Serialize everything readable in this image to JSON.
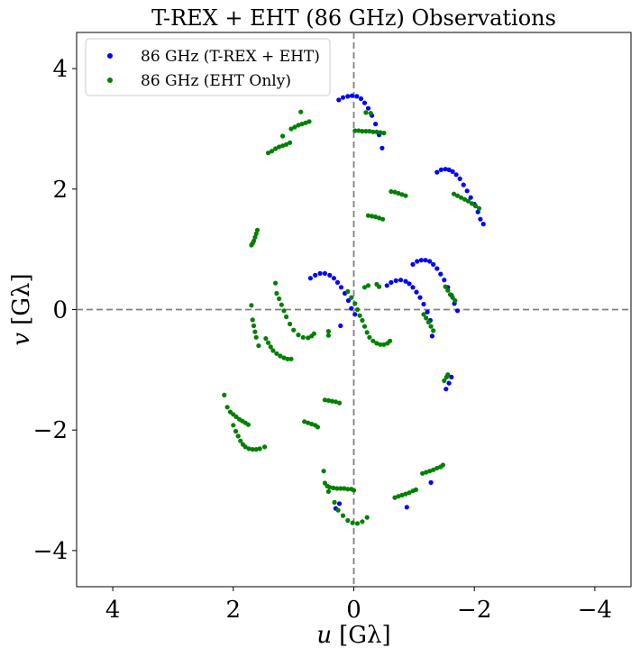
{
  "chart_data": {
    "type": "scatter",
    "title": "T-REX + EHT (86 GHz) Observations",
    "xlabel_var": "u",
    "xlabel_unit": "[Gλ]",
    "ylabel_var": "v",
    "ylabel_unit": "[Gλ]",
    "xlim": [
      4.6,
      -4.6
    ],
    "ylim": [
      -4.6,
      4.6
    ],
    "xticks": [
      4,
      2,
      0,
      -2,
      -4
    ],
    "xtick_labels": [
      "4",
      "2",
      "0",
      "−2",
      "−4"
    ],
    "yticks": [
      4,
      2,
      0,
      -2,
      -4
    ],
    "ytick_labels": [
      "4",
      "2",
      "0",
      "−2",
      "−4"
    ],
    "zero_lines": true,
    "grid": false,
    "legend_position": "top-left",
    "series": [
      {
        "name": "86 GHz (T-REX + EHT)",
        "color": "#0000ff",
        "points": [
          [
            0.25,
            3.48
          ],
          [
            0.18,
            3.52
          ],
          [
            0.1,
            3.54
          ],
          [
            0.03,
            3.55
          ],
          [
            -0.05,
            3.54
          ],
          [
            -0.12,
            3.5
          ],
          [
            -0.18,
            3.43
          ],
          [
            -0.24,
            3.34
          ],
          [
            -0.3,
            3.22
          ],
          [
            -0.36,
            3.08
          ],
          [
            -0.42,
            2.9
          ],
          [
            -0.47,
            2.68
          ],
          [
            -1.38,
            2.28
          ],
          [
            -1.45,
            2.32
          ],
          [
            -1.52,
            2.33
          ],
          [
            -1.58,
            2.32
          ],
          [
            -1.64,
            2.29
          ],
          [
            -1.7,
            2.24
          ],
          [
            -1.76,
            2.17
          ],
          [
            -1.82,
            2.07
          ],
          [
            -1.88,
            1.97
          ],
          [
            -1.94,
            1.86
          ],
          [
            -2.0,
            1.75
          ],
          [
            -2.06,
            1.62
          ],
          [
            -2.1,
            1.5
          ],
          [
            -2.15,
            1.42
          ],
          [
            0.72,
            0.52
          ],
          [
            0.64,
            0.57
          ],
          [
            0.56,
            0.6
          ],
          [
            0.48,
            0.6
          ],
          [
            0.4,
            0.57
          ],
          [
            0.33,
            0.52
          ],
          [
            0.27,
            0.45
          ],
          [
            0.21,
            0.37
          ],
          [
            0.15,
            0.27
          ],
          [
            0.09,
            0.15
          ],
          [
            0.04,
            0.02
          ],
          [
            -0.02,
            -0.08
          ],
          [
            0.22,
            -0.27
          ],
          [
            -0.55,
            0.4
          ],
          [
            -0.62,
            0.45
          ],
          [
            -0.7,
            0.48
          ],
          [
            -0.78,
            0.49
          ],
          [
            -0.86,
            0.47
          ],
          [
            -0.92,
            0.43
          ],
          [
            -0.98,
            0.37
          ],
          [
            -1.04,
            0.29
          ],
          [
            -1.1,
            0.2
          ],
          [
            -1.16,
            0.09
          ],
          [
            -1.22,
            -0.04
          ],
          [
            -1.27,
            -0.18
          ],
          [
            -1.3,
            -0.44
          ],
          [
            -0.98,
            0.75
          ],
          [
            -1.05,
            0.8
          ],
          [
            -1.12,
            0.82
          ],
          [
            -1.19,
            0.82
          ],
          [
            -1.26,
            0.8
          ],
          [
            -1.32,
            0.75
          ],
          [
            -1.38,
            0.68
          ],
          [
            -1.44,
            0.59
          ],
          [
            -1.5,
            0.49
          ],
          [
            -1.56,
            0.37
          ],
          [
            -1.62,
            0.24
          ],
          [
            -1.67,
            0.1
          ],
          [
            -1.72,
            -0.02
          ],
          [
            -1.53,
            -1.32
          ],
          [
            -1.58,
            -1.22
          ],
          [
            -1.62,
            -1.12
          ],
          [
            0.24,
            -3.22
          ],
          [
            0.3,
            -3.3
          ],
          [
            -0.88,
            -3.28
          ],
          [
            -1.28,
            -2.87
          ]
        ]
      },
      {
        "name": "86 GHz (EHT Only)",
        "color": "#008000",
        "points": [
          [
            0.88,
            3.28
          ],
          [
            1.18,
            2.88
          ],
          [
            0.74,
            3.12
          ],
          [
            0.8,
            3.1
          ],
          [
            0.86,
            3.08
          ],
          [
            0.92,
            3.06
          ],
          [
            0.98,
            3.03
          ],
          [
            1.04,
            3.0
          ],
          [
            1.06,
            2.77
          ],
          [
            1.12,
            2.74
          ],
          [
            1.18,
            2.72
          ],
          [
            1.24,
            2.7
          ],
          [
            1.3,
            2.67
          ],
          [
            1.36,
            2.63
          ],
          [
            1.42,
            2.6
          ],
          [
            -0.02,
            2.97
          ],
          [
            -0.08,
            2.97
          ],
          [
            -0.14,
            2.96
          ],
          [
            -0.2,
            2.96
          ],
          [
            -0.26,
            2.96
          ],
          [
            -0.32,
            2.95
          ],
          [
            -0.38,
            2.95
          ],
          [
            -0.44,
            2.94
          ],
          [
            -0.5,
            2.93
          ],
          [
            -0.2,
            3.27
          ],
          [
            -0.28,
            3.26
          ],
          [
            -0.62,
            1.96
          ],
          [
            -0.68,
            1.95
          ],
          [
            -0.74,
            1.93
          ],
          [
            -0.8,
            1.91
          ],
          [
            -0.86,
            1.89
          ],
          [
            -1.66,
            1.92
          ],
          [
            -1.72,
            1.89
          ],
          [
            -1.78,
            1.86
          ],
          [
            -1.84,
            1.83
          ],
          [
            -1.9,
            1.8
          ],
          [
            -1.96,
            1.76
          ],
          [
            -2.02,
            1.72
          ],
          [
            -2.08,
            1.68
          ],
          [
            -0.24,
            1.56
          ],
          [
            -0.3,
            1.55
          ],
          [
            -0.36,
            1.54
          ],
          [
            -0.42,
            1.52
          ],
          [
            -0.48,
            1.5
          ],
          [
            1.6,
            1.32
          ],
          [
            1.62,
            1.26
          ],
          [
            1.64,
            1.2
          ],
          [
            1.66,
            1.14
          ],
          [
            1.68,
            1.1
          ],
          [
            1.7,
            1.07
          ],
          [
            -0.18,
            0.37
          ],
          [
            -0.24,
            0.4
          ],
          [
            -0.38,
            0.42
          ],
          [
            -0.42,
            0.38
          ],
          [
            1.3,
            0.44
          ],
          [
            1.7,
            0.07
          ],
          [
            -1.52,
            0.38
          ],
          [
            -1.56,
            0.32
          ],
          [
            -1.6,
            0.25
          ],
          [
            -1.64,
            0.2
          ],
          [
            -1.68,
            0.15
          ],
          [
            -1.16,
            -0.08
          ],
          [
            -1.2,
            -0.14
          ],
          [
            -1.24,
            -0.21
          ],
          [
            -1.28,
            -0.28
          ],
          [
            -1.32,
            -0.35
          ],
          [
            1.28,
            0.27
          ],
          [
            1.24,
            0.18
          ],
          [
            1.2,
            0.08
          ],
          [
            1.16,
            -0.02
          ],
          [
            1.12,
            -0.12
          ],
          [
            1.06,
            -0.24
          ],
          [
            1.0,
            -0.34
          ],
          [
            0.92,
            -0.42
          ],
          [
            0.84,
            -0.46
          ],
          [
            0.76,
            -0.47
          ],
          [
            0.7,
            -0.44
          ],
          [
            0.66,
            -0.4
          ],
          [
            1.68,
            -0.17
          ],
          [
            1.66,
            -0.27
          ],
          [
            1.64,
            -0.37
          ],
          [
            1.62,
            -0.46
          ],
          [
            1.58,
            -0.6
          ],
          [
            1.46,
            -0.48
          ],
          [
            1.42,
            -0.55
          ],
          [
            1.38,
            -0.62
          ],
          [
            1.34,
            -0.68
          ],
          [
            1.28,
            -0.73
          ],
          [
            1.22,
            -0.77
          ],
          [
            1.16,
            -0.8
          ],
          [
            1.1,
            -0.82
          ],
          [
            1.04,
            -0.82
          ],
          [
            0.1,
            0.3
          ],
          [
            0.04,
            0.2
          ],
          [
            -0.02,
            0.1
          ],
          [
            -0.06,
            0.0
          ],
          [
            -0.1,
            -0.1
          ],
          [
            -0.14,
            -0.18
          ],
          [
            -0.18,
            -0.28
          ],
          [
            -0.22,
            -0.38
          ],
          [
            -0.26,
            -0.46
          ],
          [
            -0.32,
            -0.52
          ],
          [
            -0.38,
            -0.56
          ],
          [
            -0.44,
            -0.58
          ],
          [
            -0.5,
            -0.58
          ],
          [
            -0.56,
            -0.56
          ],
          [
            -0.6,
            -0.52
          ],
          [
            0.42,
            -0.36
          ],
          [
            0.42,
            -0.43
          ],
          [
            -1.5,
            -1.18
          ],
          [
            -1.54,
            -1.12
          ],
          [
            -1.56,
            -1.08
          ],
          [
            0.48,
            -1.5
          ],
          [
            0.42,
            -1.51
          ],
          [
            0.36,
            -1.52
          ],
          [
            0.3,
            -1.53
          ],
          [
            0.24,
            -1.55
          ],
          [
            0.82,
            -1.86
          ],
          [
            0.76,
            -1.88
          ],
          [
            0.7,
            -1.9
          ],
          [
            0.64,
            -1.92
          ],
          [
            0.6,
            -1.95
          ],
          [
            2.15,
            -1.42
          ],
          [
            2.1,
            -1.62
          ],
          [
            2.05,
            -1.7
          ],
          [
            2.0,
            -1.74
          ],
          [
            1.95,
            -1.78
          ],
          [
            1.9,
            -1.82
          ],
          [
            1.85,
            -1.85
          ],
          [
            1.8,
            -1.88
          ],
          [
            1.75,
            -1.91
          ],
          [
            2.0,
            -1.92
          ],
          [
            1.96,
            -2.02
          ],
          [
            1.92,
            -2.1
          ],
          [
            1.88,
            -2.18
          ],
          [
            1.84,
            -2.24
          ],
          [
            1.8,
            -2.28
          ],
          [
            1.74,
            -2.31
          ],
          [
            1.68,
            -2.32
          ],
          [
            1.62,
            -2.32
          ],
          [
            1.56,
            -2.31
          ],
          [
            1.48,
            -2.28
          ],
          [
            -1.14,
            -2.72
          ],
          [
            -1.2,
            -2.7
          ],
          [
            -1.26,
            -2.68
          ],
          [
            -1.32,
            -2.66
          ],
          [
            -1.38,
            -2.63
          ],
          [
            -1.44,
            -2.61
          ],
          [
            -1.48,
            -2.58
          ],
          [
            -0.68,
            -3.12
          ],
          [
            -0.74,
            -3.1
          ],
          [
            -0.8,
            -3.08
          ],
          [
            -0.86,
            -3.06
          ],
          [
            -0.92,
            -3.04
          ],
          [
            -0.98,
            -3.01
          ],
          [
            -1.03,
            -2.99
          ],
          [
            0.5,
            -2.68
          ],
          [
            0.48,
            -2.88
          ],
          [
            0.44,
            -2.93
          ],
          [
            0.4,
            -2.95
          ],
          [
            0.34,
            -2.96
          ],
          [
            0.28,
            -2.97
          ],
          [
            0.22,
            -2.97
          ],
          [
            0.16,
            -2.97
          ],
          [
            0.1,
            -2.98
          ],
          [
            0.04,
            -2.98
          ],
          [
            0.0,
            -3.0
          ],
          [
            0.42,
            -3.02
          ],
          [
            0.32,
            -3.2
          ],
          [
            0.26,
            -3.33
          ],
          [
            0.18,
            -3.42
          ],
          [
            0.1,
            -3.5
          ],
          [
            0.02,
            -3.54
          ],
          [
            -0.06,
            -3.55
          ],
          [
            -0.14,
            -3.52
          ],
          [
            -0.22,
            -3.45
          ]
        ]
      }
    ]
  }
}
